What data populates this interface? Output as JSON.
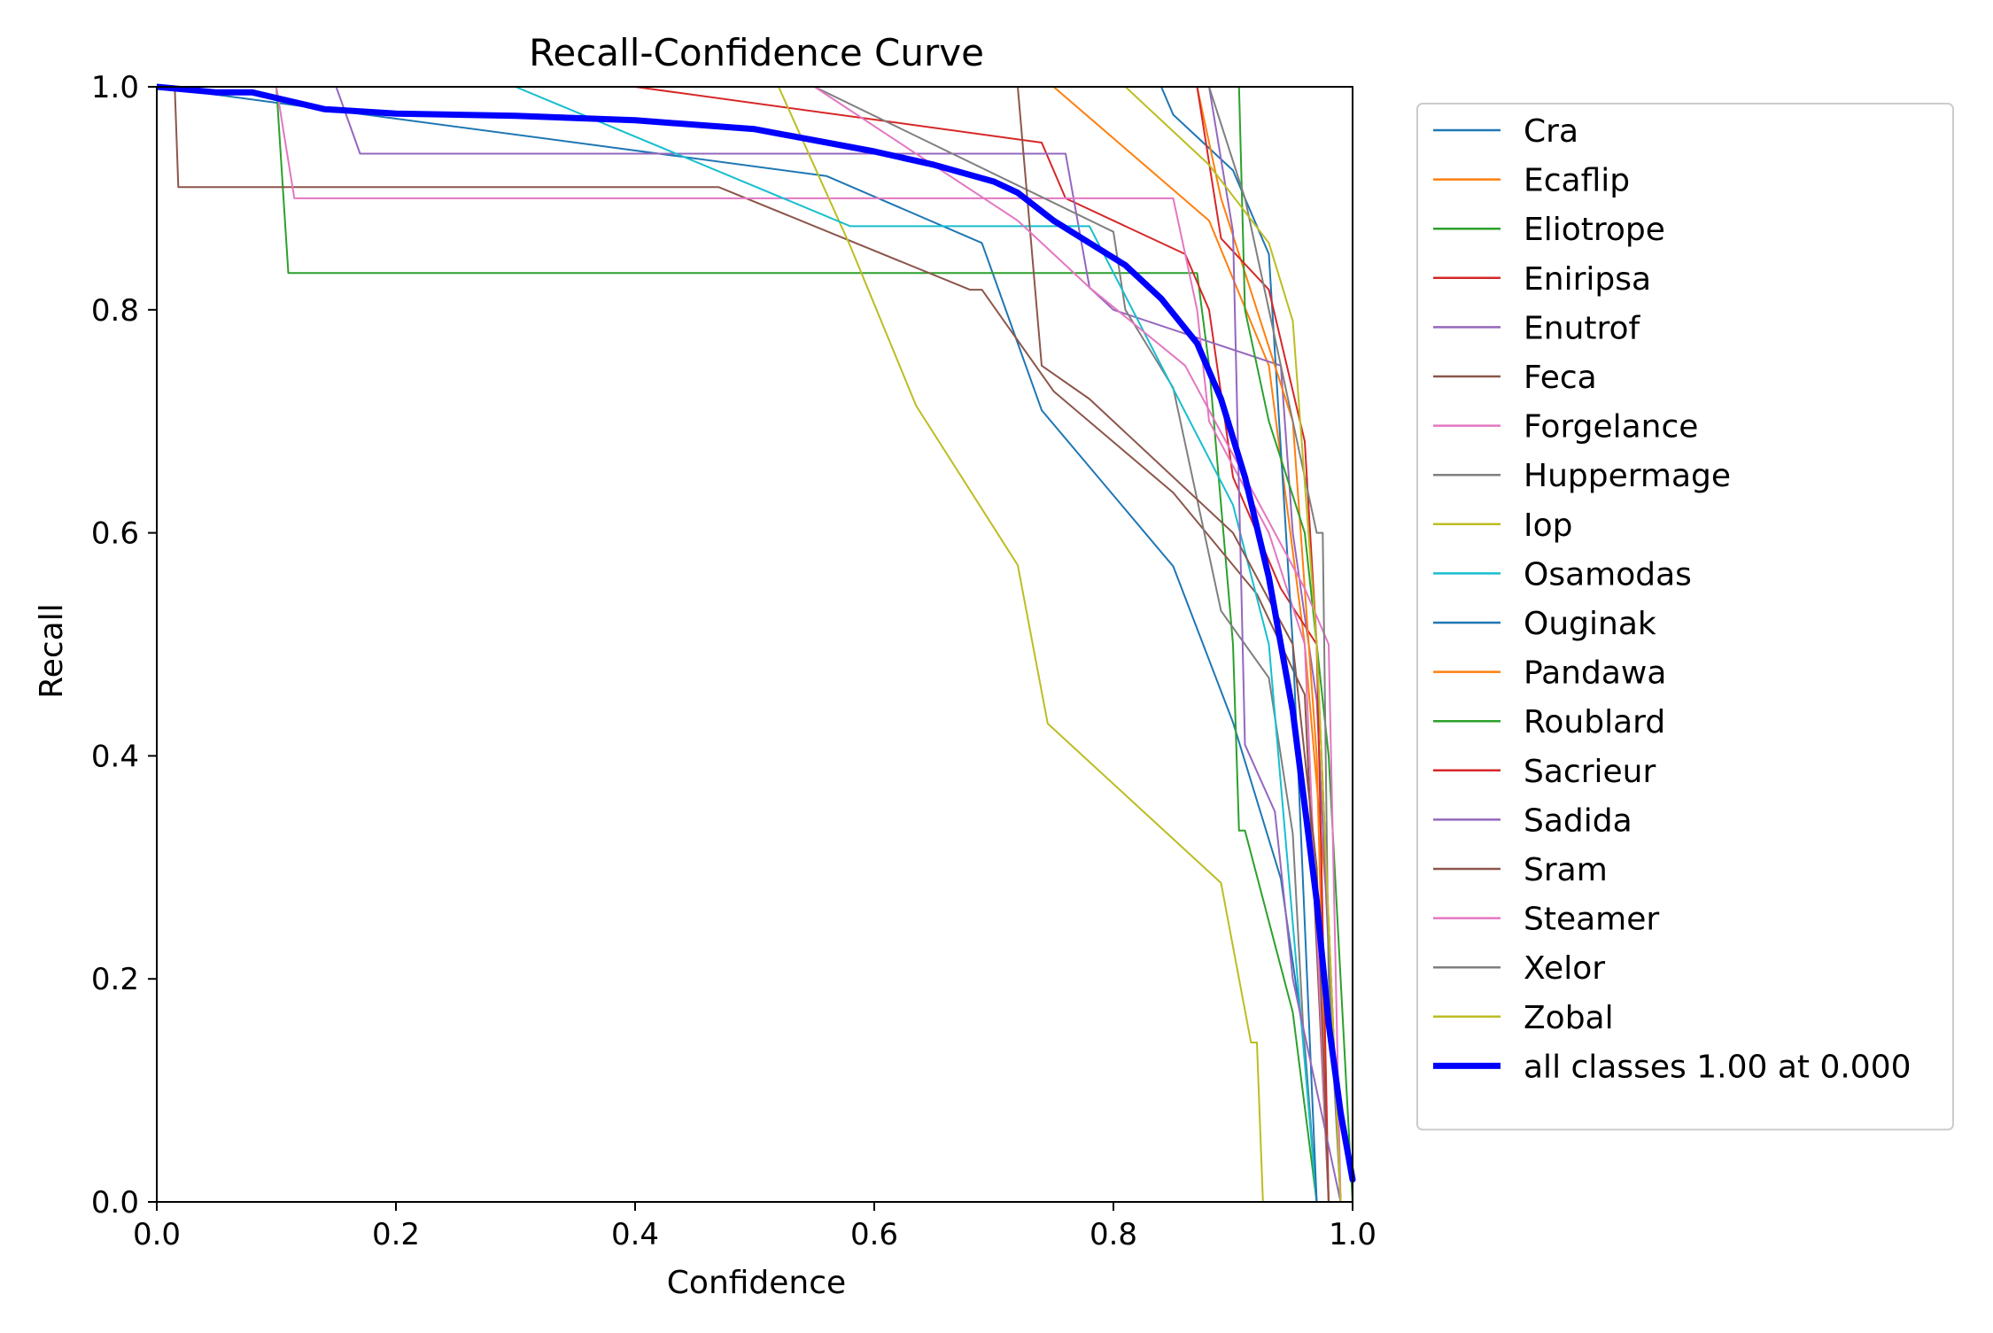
{
  "chart_data": {
    "type": "line",
    "title": "Recall-Confidence Curve",
    "xlabel": "Confidence",
    "ylabel": "Recall",
    "xlim": [
      0,
      1
    ],
    "ylim": [
      0,
      1
    ],
    "xticks": [
      "0.0",
      "0.2",
      "0.4",
      "0.6",
      "0.8",
      "1.0"
    ],
    "yticks": [
      "0.0",
      "0.2",
      "0.4",
      "0.6",
      "0.8",
      "1.0"
    ],
    "grid": false,
    "legend_position": "outside-right",
    "series": [
      {
        "name": "Cra",
        "color": "#1f77b4",
        "width": 2,
        "x": [
          0,
          0.56,
          0.69,
          0.74,
          0.85,
          0.9,
          0.94,
          0.96,
          0.97
        ],
        "y": [
          1,
          0.92,
          0.86,
          0.71,
          0.57,
          0.43,
          0.29,
          0.14,
          0
        ]
      },
      {
        "name": "Ecaflip",
        "color": "#ff7f0e",
        "width": 2,
        "x": [
          0,
          0.75,
          0.88,
          0.93,
          0.96,
          0.98,
          0.99
        ],
        "y": [
          1,
          1,
          0.88,
          0.75,
          0.5,
          0.25,
          0
        ]
      },
      {
        "name": "Eliotrope",
        "color": "#2ca02c",
        "width": 2,
        "x": [
          0,
          0.1,
          0.11,
          0.87,
          0.88,
          0.9,
          0.905,
          0.91,
          0.95,
          0.97
        ],
        "y": [
          1,
          1,
          0.833,
          0.833,
          0.75,
          0.5,
          0.333,
          0.333,
          0.17,
          0
        ]
      },
      {
        "name": "Eniripsa",
        "color": "#d62728",
        "width": 2,
        "x": [
          0,
          0.4,
          0.74,
          0.76,
          0.86,
          0.88,
          0.9,
          0.94,
          0.97,
          0.99
        ],
        "y": [
          1,
          1,
          0.95,
          0.9,
          0.85,
          0.8,
          0.65,
          0.55,
          0.5,
          0
        ]
      },
      {
        "name": "Enutrof",
        "color": "#9467bd",
        "width": 2,
        "x": [
          0,
          0.15,
          0.17,
          0.76,
          0.78,
          0.8,
          0.94,
          0.95,
          0.97,
          0.99
        ],
        "y": [
          1,
          1,
          0.94,
          0.94,
          0.82,
          0.8,
          0.75,
          0.6,
          0.45,
          0
        ]
      },
      {
        "name": "Feca",
        "color": "#8c564b",
        "width": 2,
        "x": [
          0,
          0.015,
          0.018,
          0.47,
          0.68,
          0.69,
          0.75,
          0.85,
          0.92,
          0.96,
          0.98
        ],
        "y": [
          1,
          1,
          0.91,
          0.91,
          0.818,
          0.818,
          0.727,
          0.636,
          0.545,
          0.455,
          0
        ]
      },
      {
        "name": "Forgelance",
        "color": "#e377c2",
        "width": 2,
        "x": [
          0,
          0.1,
          0.115,
          0.85,
          0.87,
          0.88,
          0.93,
          0.96,
          0.98
        ],
        "y": [
          1,
          1,
          0.9,
          0.9,
          0.8,
          0.7,
          0.6,
          0.5,
          0
        ]
      },
      {
        "name": "Huppermage",
        "color": "#7f7f7f",
        "width": 2,
        "x": [
          0,
          0.55,
          0.8,
          0.81,
          0.85,
          0.89,
          0.93,
          0.95,
          0.96,
          0.97
        ],
        "y": [
          1,
          1,
          0.87,
          0.8,
          0.73,
          0.53,
          0.47,
          0.33,
          0.13,
          0
        ]
      },
      {
        "name": "Iop",
        "color": "#bcbd22",
        "width": 2,
        "x": [
          0,
          0.52,
          0.58,
          0.635,
          0.72,
          0.745,
          0.89,
          0.915,
          0.92,
          0.925
        ],
        "y": [
          1,
          1,
          0.857,
          0.714,
          0.571,
          0.429,
          0.286,
          0.143,
          0.143,
          0
        ]
      },
      {
        "name": "Osamodas",
        "color": "#17becf",
        "width": 2,
        "x": [
          0,
          0.3,
          0.58,
          0.78,
          0.84,
          0.9,
          0.93,
          0.95,
          0.97
        ],
        "y": [
          1,
          1,
          0.875,
          0.875,
          0.75,
          0.625,
          0.5,
          0.25,
          0
        ]
      },
      {
        "name": "Ouginak",
        "color": "#1f77b4",
        "width": 2,
        "x": [
          0,
          0.84,
          0.85,
          0.9,
          0.93,
          0.95,
          0.97
        ],
        "y": [
          1,
          1,
          0.975,
          0.925,
          0.85,
          0.5,
          0
        ]
      },
      {
        "name": "Pandawa",
        "color": "#ff7f0e",
        "width": 2,
        "x": [
          0,
          0.87,
          0.89,
          0.92,
          0.95,
          0.97,
          0.98
        ],
        "y": [
          1,
          1,
          0.9,
          0.8,
          0.7,
          0.4,
          0
        ]
      },
      {
        "name": "Roublard",
        "color": "#2ca02c",
        "width": 2,
        "x": [
          0,
          0.905,
          0.91,
          0.93,
          0.96,
          0.98,
          0.99,
          1.0
        ],
        "y": [
          1,
          1,
          0.8,
          0.7,
          0.6,
          0.4,
          0.2,
          0
        ]
      },
      {
        "name": "Sacrieur",
        "color": "#d62728",
        "width": 2,
        "x": [
          0,
          0.87,
          0.89,
          0.93,
          0.96,
          0.97,
          0.98
        ],
        "y": [
          1,
          1,
          0.864,
          0.818,
          0.682,
          0.5,
          0
        ]
      },
      {
        "name": "Sadida",
        "color": "#9467bd",
        "width": 2,
        "x": [
          0,
          0.88,
          0.9,
          0.91,
          0.935,
          0.95,
          0.97,
          0.99
        ],
        "y": [
          1,
          1,
          0.87,
          0.41,
          0.35,
          0.2,
          0.1,
          0
        ]
      },
      {
        "name": "Sram",
        "color": "#8c564b",
        "width": 2,
        "x": [
          0,
          0.72,
          0.74,
          0.78,
          0.9,
          0.95,
          0.97,
          0.98
        ],
        "y": [
          1,
          1,
          0.75,
          0.72,
          0.6,
          0.5,
          0.3,
          0
        ]
      },
      {
        "name": "Steamer",
        "color": "#e377c2",
        "width": 2,
        "x": [
          0,
          0.55,
          0.72,
          0.78,
          0.86,
          0.91,
          0.96,
          0.98,
          0.99
        ],
        "y": [
          1,
          1,
          0.88,
          0.82,
          0.75,
          0.65,
          0.55,
          0.5,
          0
        ]
      },
      {
        "name": "Xelor",
        "color": "#7f7f7f",
        "width": 2,
        "x": [
          0,
          0.88,
          0.91,
          0.95,
          0.97,
          0.975,
          0.98,
          0.99
        ],
        "y": [
          1,
          1,
          0.9,
          0.7,
          0.6,
          0.6,
          0.2,
          0
        ]
      },
      {
        "name": "Zobal",
        "color": "#bcbd22",
        "width": 2,
        "x": [
          0,
          0.81,
          0.88,
          0.93,
          0.95,
          0.97,
          0.99
        ],
        "y": [
          1,
          1,
          0.93,
          0.86,
          0.79,
          0.5,
          0
        ]
      },
      {
        "name": "all classes 1.00 at 0.000",
        "color": "#0000ff",
        "width": 7,
        "x": [
          0,
          0.05,
          0.08,
          0.1,
          0.14,
          0.2,
          0.3,
          0.4,
          0.5,
          0.6,
          0.65,
          0.7,
          0.72,
          0.75,
          0.78,
          0.81,
          0.84,
          0.87,
          0.89,
          0.91,
          0.93,
          0.95,
          0.97,
          0.98,
          0.99,
          1.0
        ],
        "y": [
          1,
          0.995,
          0.995,
          0.99,
          0.98,
          0.976,
          0.974,
          0.97,
          0.962,
          0.942,
          0.93,
          0.915,
          0.905,
          0.88,
          0.86,
          0.84,
          0.81,
          0.77,
          0.72,
          0.65,
          0.56,
          0.44,
          0.27,
          0.16,
          0.08,
          0.02
        ]
      }
    ]
  }
}
